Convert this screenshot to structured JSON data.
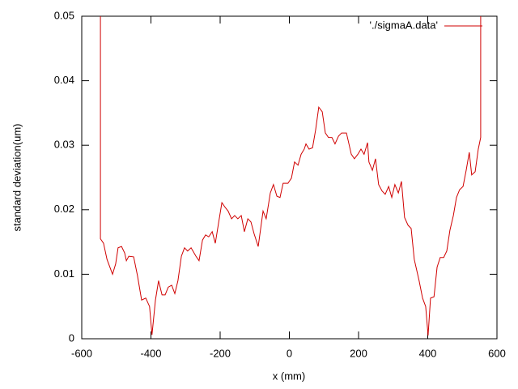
{
  "chart_data": {
    "type": "line",
    "xlabel": "x (mm)",
    "ylabel": "standard deviation(um)",
    "x": [
      -546,
      -546,
      -537,
      -527,
      -511,
      -502,
      -495,
      -485,
      -476,
      -471,
      -464,
      -450,
      -439,
      -427,
      -415,
      -404,
      -397,
      -387,
      -378,
      -368,
      -359,
      -350,
      -340,
      -331,
      -322,
      -312,
      -303,
      -294,
      -284,
      -270,
      -261,
      -251,
      -242,
      -233,
      -223,
      -214,
      -205,
      -195,
      -186,
      -177,
      -167,
      -158,
      -149,
      -139,
      -130,
      -120,
      -111,
      -102,
      -90,
      -76,
      -67,
      -55,
      -46,
      -36,
      -27,
      -18,
      -4,
      6,
      15,
      25,
      34,
      43,
      48,
      57,
      67,
      76,
      85,
      95,
      104,
      113,
      123,
      132,
      142,
      151,
      165,
      179,
      188,
      198,
      207,
      216,
      226,
      230,
      240,
      249,
      258,
      268,
      277,
      287,
      296,
      305,
      315,
      324,
      333,
      343,
      352,
      361,
      375,
      385,
      394,
      401,
      408,
      418,
      427,
      436,
      446,
      455,
      464,
      474,
      483,
      492,
      502,
      511,
      520,
      527,
      537,
      546,
      553,
      553
    ],
    "series": [
      {
        "name": "'./sigmaA.data'",
        "color": "#d00000",
        "values": [
          0.05,
          0.0155,
          0.0148,
          0.0123,
          0.01,
          0.0116,
          0.0141,
          0.0143,
          0.0133,
          0.0121,
          0.0128,
          0.0127,
          0.0098,
          0.006,
          0.0063,
          0.005,
          0.0006,
          0.006,
          0.009,
          0.0068,
          0.0068,
          0.008,
          0.0083,
          0.007,
          0.009,
          0.0128,
          0.0141,
          0.0136,
          0.0141,
          0.0128,
          0.0121,
          0.0153,
          0.0161,
          0.0158,
          0.0166,
          0.0148,
          0.0178,
          0.0211,
          0.0204,
          0.0198,
          0.0186,
          0.0191,
          0.0186,
          0.0191,
          0.0166,
          0.0186,
          0.0181,
          0.0163,
          0.0143,
          0.0198,
          0.0186,
          0.0226,
          0.0239,
          0.0221,
          0.0219,
          0.0241,
          0.0241,
          0.0249,
          0.0274,
          0.0269,
          0.0286,
          0.0294,
          0.0302,
          0.0294,
          0.0296,
          0.0324,
          0.0359,
          0.0352,
          0.0319,
          0.0312,
          0.0312,
          0.0302,
          0.0314,
          0.0319,
          0.0319,
          0.0286,
          0.0279,
          0.0286,
          0.0294,
          0.0286,
          0.0304,
          0.0274,
          0.0261,
          0.0279,
          0.0239,
          0.0229,
          0.0224,
          0.0236,
          0.0219,
          0.0239,
          0.0226,
          0.0244,
          0.0188,
          0.0176,
          0.0171,
          0.0123,
          0.009,
          0.0063,
          0.005,
          0.0005,
          0.0063,
          0.0065,
          0.0111,
          0.0126,
          0.0126,
          0.0136,
          0.0168,
          0.0191,
          0.0219,
          0.0231,
          0.0236,
          0.0261,
          0.0289,
          0.0254,
          0.0259,
          0.0294,
          0.0312,
          0.05
        ]
      }
    ],
    "xlim": [
      -600,
      600
    ],
    "xticks": [
      -600,
      -400,
      -200,
      0,
      200,
      400,
      600
    ],
    "ylim": [
      0,
      0.05
    ],
    "yticks": [
      0,
      0.01,
      0.02,
      0.03,
      0.04,
      0.05
    ],
    "legend": "top right",
    "grid": false
  }
}
